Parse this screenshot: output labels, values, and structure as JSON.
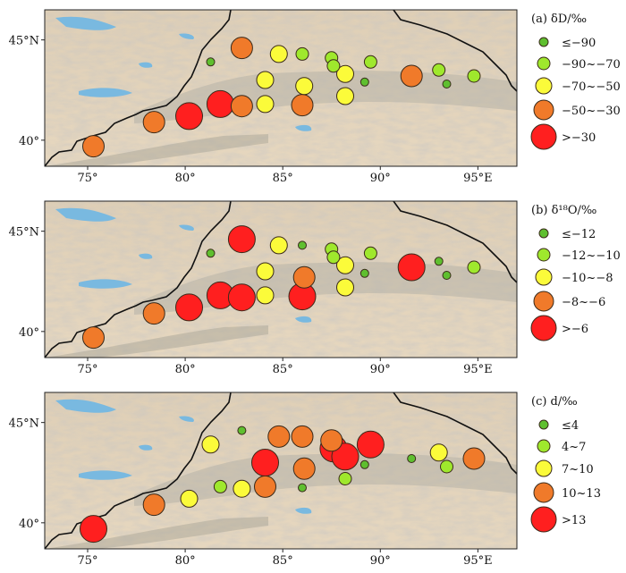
{
  "x_ticks": [
    "75°",
    "80°",
    "85°",
    "90°",
    "95°E"
  ],
  "y_ticks": [
    "45°N",
    "40°"
  ],
  "extent": {
    "lon_min": 72.8,
    "lon_max": 97.0,
    "lat_min": 38.7,
    "lat_max": 46.5
  },
  "tick_lons": [
    75,
    80,
    85,
    90,
    95
  ],
  "tick_lats": [
    45,
    40
  ],
  "colors": {
    "cls1": "#5fbf2f",
    "cls2": "#9fe82d",
    "cls3": "#fbfb3a",
    "cls4": "#f07a2a",
    "cls5": "#ff1f1f",
    "lake": "#79b9e0",
    "border": "#111111"
  },
  "stations": [
    {
      "id": "s01",
      "lon": 75.3,
      "lat": 39.7
    },
    {
      "id": "s02",
      "lon": 78.4,
      "lat": 40.9
    },
    {
      "id": "s03",
      "lon": 80.2,
      "lat": 41.2
    },
    {
      "id": "s04",
      "lon": 81.3,
      "lat": 43.9
    },
    {
      "id": "s05",
      "lon": 81.8,
      "lat": 41.8
    },
    {
      "id": "s06",
      "lon": 82.9,
      "lat": 44.6
    },
    {
      "id": "s07",
      "lon": 82.9,
      "lat": 41.7
    },
    {
      "id": "s08",
      "lon": 84.1,
      "lat": 43.0
    },
    {
      "id": "s09",
      "lon": 84.1,
      "lat": 41.8
    },
    {
      "id": "s10",
      "lon": 84.8,
      "lat": 44.3
    },
    {
      "id": "s11",
      "lon": 86.0,
      "lat": 44.3
    },
    {
      "id": "s12",
      "lon": 86.1,
      "lat": 42.7
    },
    {
      "id": "s13",
      "lon": 86.0,
      "lat": 41.75
    },
    {
      "id": "s14",
      "lon": 87.5,
      "lat": 44.1
    },
    {
      "id": "s15",
      "lon": 87.6,
      "lat": 43.7
    },
    {
      "id": "s16",
      "lon": 88.2,
      "lat": 43.3
    },
    {
      "id": "s17",
      "lon": 88.2,
      "lat": 42.2
    },
    {
      "id": "s18",
      "lon": 89.2,
      "lat": 42.9
    },
    {
      "id": "s19",
      "lon": 89.5,
      "lat": 43.9
    },
    {
      "id": "s20",
      "lon": 91.6,
      "lat": 43.2
    },
    {
      "id": "s21",
      "lon": 93.0,
      "lat": 43.5
    },
    {
      "id": "s22",
      "lon": 93.4,
      "lat": 42.8
    },
    {
      "id": "s23",
      "lon": 94.8,
      "lat": 43.2
    }
  ],
  "panels": [
    {
      "id": "a",
      "legend_title": "(a) δD/‰",
      "classes": [
        "≤−90",
        "−90~−70",
        "−70~−50",
        "−50~−30",
        ">−30"
      ],
      "values": [
        4,
        4,
        5,
        1,
        5,
        4,
        4,
        3,
        3,
        3,
        2,
        3,
        4,
        2,
        2,
        3,
        3,
        1,
        2,
        4,
        2,
        1,
        2
      ]
    },
    {
      "id": "b",
      "legend_title": "(b) δ¹⁸O/‰",
      "classes": [
        "≤−12",
        "−12~−10",
        "−10~−8",
        "−8~−6",
        ">−6"
      ],
      "values": [
        4,
        4,
        5,
        1,
        5,
        5,
        5,
        3,
        3,
        3,
        1,
        4,
        5,
        2,
        2,
        3,
        3,
        1,
        2,
        5,
        1,
        1,
        2
      ]
    },
    {
      "id": "c",
      "legend_title": "(c) d/‰",
      "classes": [
        "≤4",
        "4~7",
        "7~10",
        "10~13",
        ">13"
      ],
      "values": [
        5,
        4,
        3,
        3,
        2,
        1,
        3,
        5,
        4,
        4,
        4,
        4,
        1,
        4,
        5,
        5,
        2,
        1,
        5,
        1,
        3,
        2,
        4
      ]
    }
  ]
}
